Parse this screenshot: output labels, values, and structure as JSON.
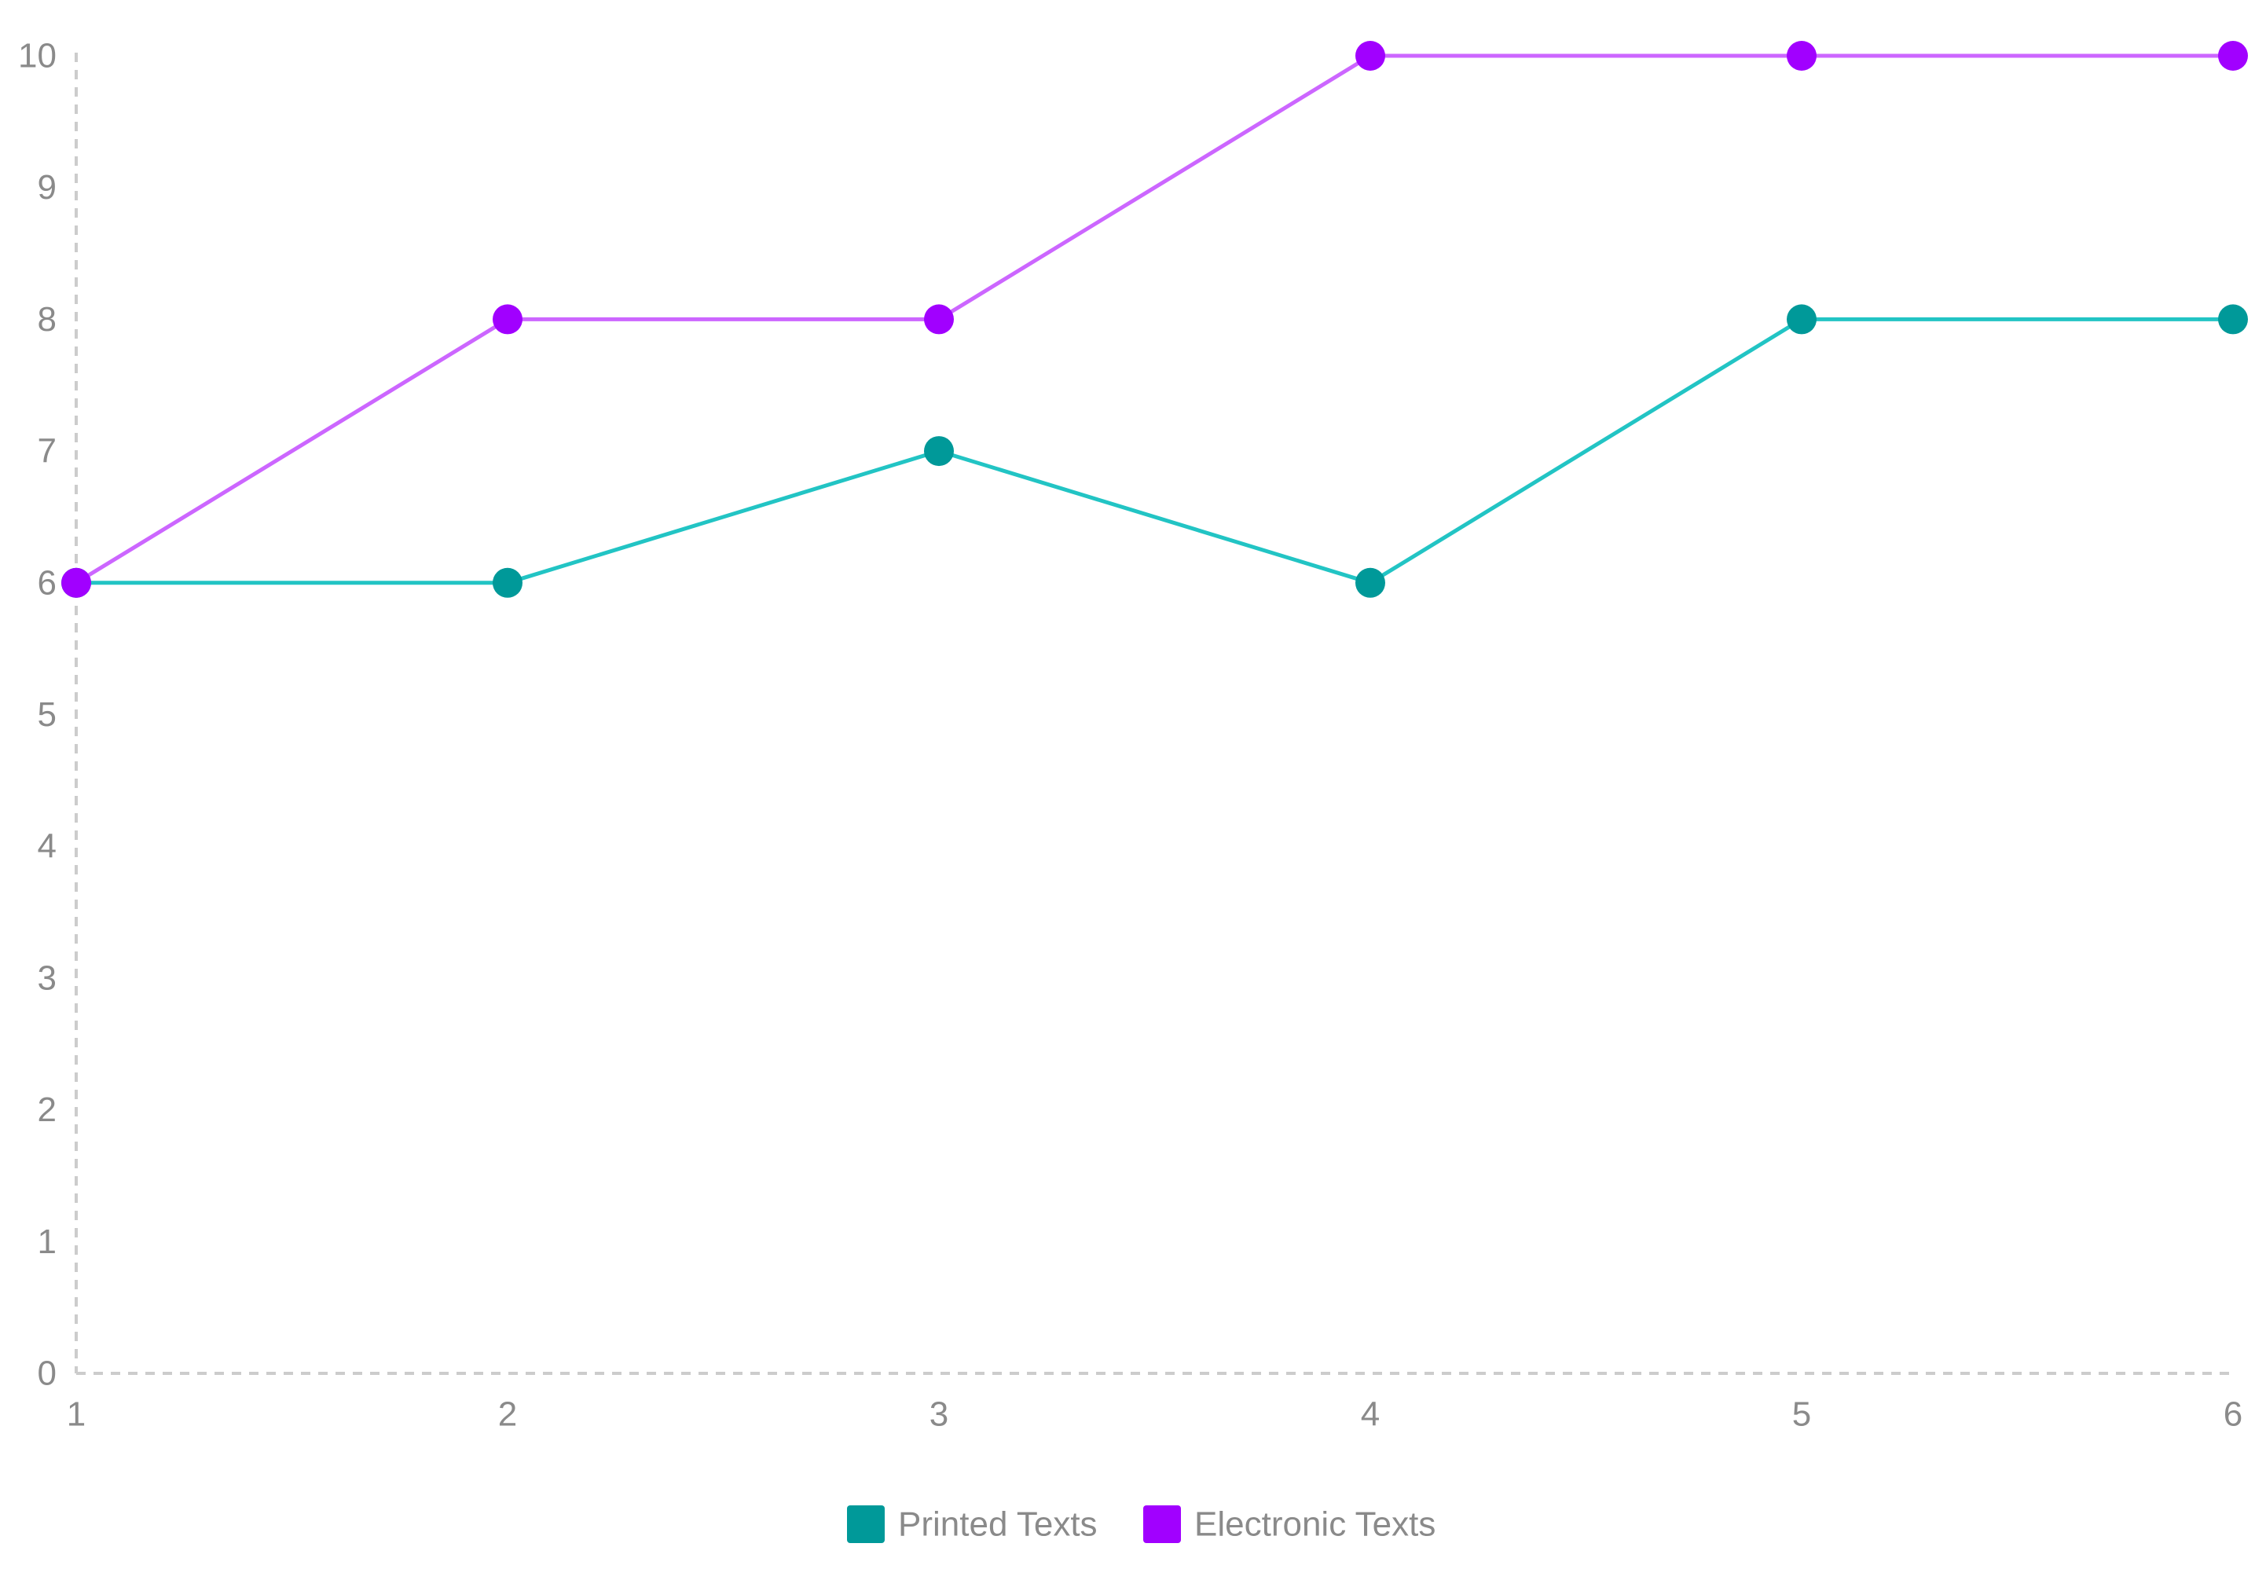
{
  "chart_data": {
    "type": "line",
    "x": [
      1,
      2,
      3,
      4,
      5,
      6
    ],
    "xticks": [
      "1",
      "2",
      "3",
      "4",
      "5",
      "6"
    ],
    "yticks": [
      "0",
      "1",
      "2",
      "3",
      "4",
      "5",
      "6",
      "7",
      "8",
      "9",
      "10"
    ],
    "xlim": [
      1,
      6
    ],
    "ylim": [
      0,
      10
    ],
    "grid": false,
    "axis_style": "dashed",
    "legend_position": "bottom-center",
    "series": [
      {
        "name": "Printed Texts",
        "values": [
          6,
          6,
          7,
          6,
          8,
          8
        ],
        "color": "#009999",
        "line_color": "#22c4c4"
      },
      {
        "name": "Electronic Texts",
        "values": [
          6,
          8,
          8,
          10,
          10,
          10
        ],
        "color": "#a100ff",
        "line_color": "#cc66ff"
      }
    ],
    "colors": {
      "axis": "#cccccc",
      "tick_text": "#8a8a8a"
    }
  }
}
